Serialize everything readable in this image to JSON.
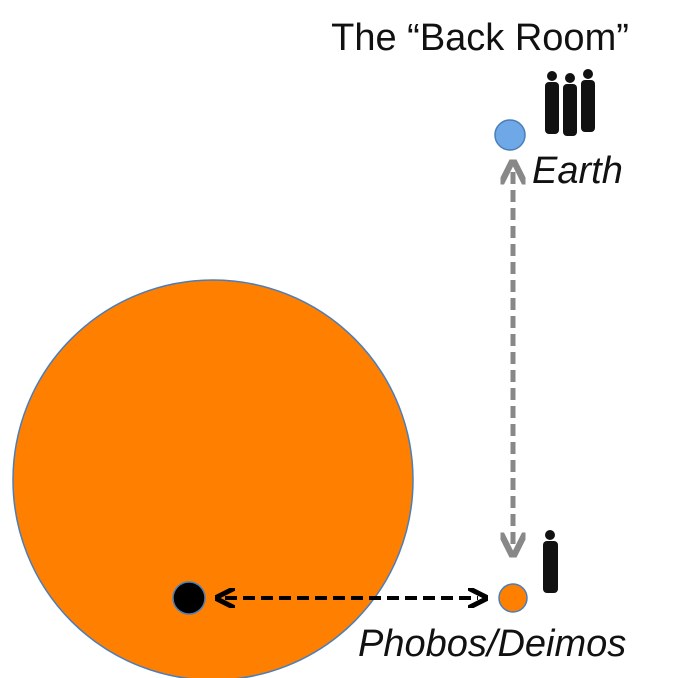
{
  "title": "The “Back Room”",
  "nodes": [
    {
      "label": "Earth"
    },
    {
      "label": "Phobos/Deimos"
    }
  ]
}
